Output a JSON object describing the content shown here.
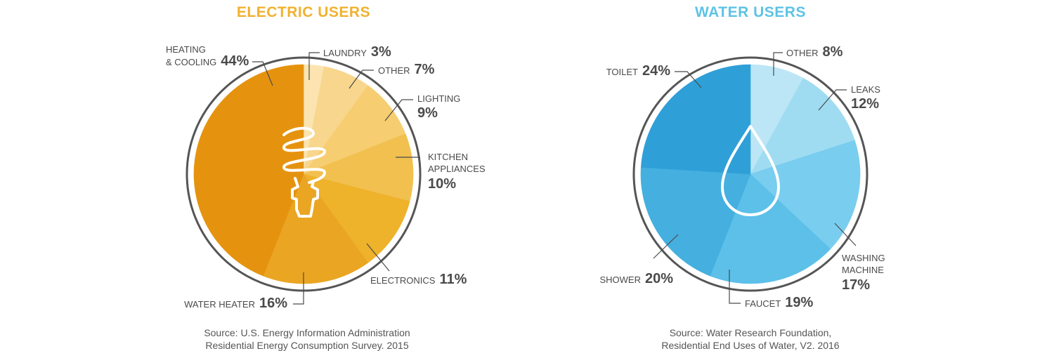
{
  "chart_data": [
    {
      "type": "pie",
      "title": "ELECTRIC USERS",
      "title_color": "#f0b230",
      "icon": "light-bulb-icon",
      "slices": [
        {
          "name": "LAUNDRY",
          "value": 3,
          "label": "3%",
          "color": "#fbe4b0"
        },
        {
          "name": "OTHER",
          "value": 7,
          "label": "7%",
          "color": "#f8d68e"
        },
        {
          "name": "LIGHTING",
          "value": 9,
          "label": "9%",
          "color": "#f6cd70"
        },
        {
          "name": "KITCHEN APPLIANCES",
          "value": 10,
          "label": "10%",
          "color": "#f2c04f"
        },
        {
          "name": "ELECTRONICS",
          "value": 11,
          "label": "11%",
          "color": "#eeb22b"
        },
        {
          "name": "WATER HEATER",
          "value": 16,
          "label": "16%",
          "color": "#eaa522"
        },
        {
          "name": "HEATING & COOLING",
          "value": 44,
          "label": "44%",
          "color": "#e5930f"
        }
      ],
      "source": [
        "Source: U.S. Energy Information Administration",
        "Residential Energy Consumption Survey. 2015"
      ]
    },
    {
      "type": "pie",
      "title": "WATER USERS",
      "title_color": "#5ec3e4",
      "icon": "water-drop-icon",
      "slices": [
        {
          "name": "OTHER",
          "value": 8,
          "label": "8%",
          "color": "#bce6f5"
        },
        {
          "name": "LEAKS",
          "value": 12,
          "label": "12%",
          "color": "#9fdcf2"
        },
        {
          "name": "WASHING MACHINE",
          "value": 17,
          "label": "17%",
          "color": "#79cdee"
        },
        {
          "name": "FAUCET",
          "value": 19,
          "label": "19%",
          "color": "#5cc0e9"
        },
        {
          "name": "SHOWER",
          "value": 20,
          "label": "20%",
          "color": "#45afdf"
        },
        {
          "name": "TOILET",
          "value": 24,
          "label": "24%",
          "color": "#2f9fd8"
        }
      ],
      "source": [
        "Source: Water Research Foundation,",
        "Residential End Uses of Water, V2. 2016"
      ]
    }
  ]
}
